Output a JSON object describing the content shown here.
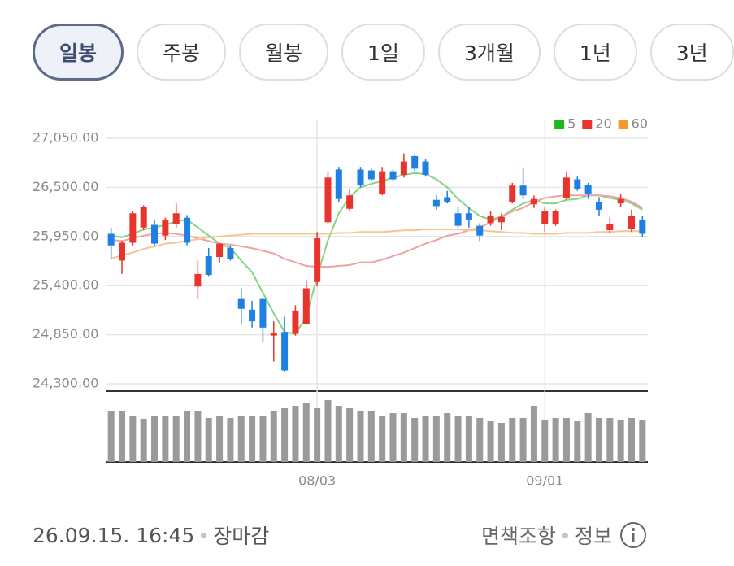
{
  "tabs": [
    {
      "label": "일봉",
      "selected": true
    },
    {
      "label": "주봉",
      "selected": false
    },
    {
      "label": "월봉",
      "selected": false
    },
    {
      "label": "1일",
      "selected": false
    },
    {
      "label": "3개월",
      "selected": false
    },
    {
      "label": "1년",
      "selected": false
    },
    {
      "label": "3년",
      "selected": false
    }
  ],
  "chart_data": {
    "type": "candlestick",
    "categories": [
      null,
      null,
      null,
      null,
      null,
      null,
      null,
      null,
      null,
      null,
      null,
      null,
      null,
      null,
      null,
      null,
      null,
      null,
      null,
      "08/03",
      null,
      null,
      null,
      null,
      null,
      null,
      null,
      null,
      null,
      null,
      null,
      null,
      null,
      null,
      null,
      null,
      null,
      null,
      null,
      null,
      "09/01",
      null,
      null,
      null,
      null,
      null,
      null,
      null,
      null,
      null
    ],
    "open": [
      25980,
      25680,
      25880,
      26050,
      26080,
      25960,
      26090,
      26160,
      25390,
      25730,
      25720,
      25820,
      25250,
      25130,
      25250,
      24840,
      24880,
      24860,
      24970,
      25440,
      26110,
      26700,
      26260,
      26700,
      26690,
      26430,
      26680,
      26640,
      26850,
      26790,
      26360,
      26390,
      26210,
      26210,
      26070,
      26100,
      26110,
      26340,
      26520,
      26310,
      26090,
      26090,
      26380,
      26590,
      26530,
      26340,
      26020,
      26320,
      26030,
      26140
    ],
    "high": [
      26050,
      25900,
      26230,
      26300,
      26140,
      26160,
      26320,
      26190,
      25680,
      25820,
      25880,
      25850,
      25370,
      25230,
      25260,
      25000,
      25050,
      25180,
      25460,
      26000,
      26680,
      26730,
      26480,
      26730,
      26710,
      26730,
      26700,
      26880,
      26870,
      26820,
      26410,
      26460,
      26280,
      26280,
      26100,
      26230,
      26210,
      26550,
      26710,
      26410,
      26280,
      26250,
      26670,
      26620,
      26550,
      26390,
      26160,
      26430,
      26250,
      26180
    ],
    "low": [
      25700,
      25530,
      25850,
      26020,
      25850,
      25910,
      26050,
      25850,
      25250,
      25500,
      25660,
      25680,
      24960,
      24930,
      24770,
      24550,
      24430,
      24840,
      24960,
      25390,
      26090,
      26340,
      26230,
      26500,
      26570,
      26410,
      26570,
      26610,
      26680,
      26620,
      26250,
      26320,
      26050,
      26050,
      25900,
      26070,
      26020,
      26320,
      26370,
      26270,
      26000,
      26070,
      26360,
      26460,
      26370,
      26180,
      25980,
      26280,
      26000,
      25940
    ],
    "close": [
      25850,
      25880,
      26210,
      26280,
      25870,
      26130,
      26210,
      25880,
      25530,
      25520,
      25870,
      25700,
      25140,
      25000,
      24930,
      24870,
      24450,
      25120,
      25370,
      25930,
      26610,
      26370,
      26410,
      26530,
      26590,
      26680,
      26590,
      26790,
      26710,
      26640,
      26290,
      26330,
      26070,
      26140,
      25960,
      26180,
      26170,
      26520,
      26410,
      26370,
      26230,
      26230,
      26610,
      26480,
      26430,
      26250,
      26090,
      26370,
      26180,
      25980
    ],
    "up_color": "#e8342c",
    "down_color": "#1f7fe3",
    "moving_averages": [
      {
        "name": "5",
        "color": "#22b522",
        "line_color": "#86d486",
        "values": [
          25960,
          25940,
          25980,
          26030,
          26050,
          26080,
          26120,
          26140,
          26050,
          25960,
          25870,
          25820,
          25680,
          25550,
          25320,
          25090,
          24880,
          24860,
          25050,
          25500,
          25910,
          26210,
          26390,
          26500,
          26540,
          26570,
          26610,
          26640,
          26660,
          26650,
          26590,
          26500,
          26370,
          26270,
          26180,
          26140,
          26170,
          26250,
          26320,
          26360,
          26320,
          26320,
          26360,
          26370,
          26410,
          26410,
          26380,
          26360,
          26320,
          26250
        ]
      },
      {
        "name": "20",
        "color": "#e8342c",
        "line_color": "#f0a3a3",
        "values": [
          25910,
          25900,
          25930,
          25960,
          25980,
          25990,
          25980,
          25960,
          25930,
          25900,
          25870,
          25860,
          25840,
          25820,
          25790,
          25760,
          25700,
          25660,
          25620,
          25610,
          25610,
          25620,
          25630,
          25660,
          25660,
          25690,
          25730,
          25770,
          25820,
          25870,
          25910,
          25960,
          25980,
          26020,
          26050,
          26110,
          26170,
          26230,
          26270,
          26340,
          26380,
          26400,
          26410,
          26410,
          26410,
          26410,
          26400,
          26380,
          26340,
          26270
        ]
      },
      {
        "name": "60",
        "color": "#f39a2b",
        "line_color": "#f6c690",
        "values": [
          25700,
          25740,
          25770,
          25810,
          25840,
          25870,
          25880,
          25900,
          25920,
          25940,
          25950,
          25960,
          25970,
          25980,
          25980,
          25980,
          25980,
          25980,
          25980,
          25980,
          25980,
          25990,
          25990,
          26000,
          26000,
          26000,
          26010,
          26020,
          26020,
          26030,
          26030,
          26030,
          26030,
          26020,
          26020,
          26010,
          26000,
          25990,
          25990,
          25980,
          25980,
          25980,
          25990,
          25990,
          25990,
          26000,
          26000,
          26010,
          26010,
          26010
        ]
      }
    ],
    "ylim": [
      24300,
      27050
    ],
    "yticks": [
      {
        "value": 24300,
        "label": "24,300.00"
      },
      {
        "value": 24850,
        "label": "24,850.00"
      },
      {
        "value": 25400,
        "label": "25,400.00"
      },
      {
        "value": 25950,
        "label": "25,950.00"
      },
      {
        "value": 26500,
        "label": "26,500.00"
      },
      {
        "value": 27050,
        "label": "27,050.00"
      }
    ],
    "grid": true,
    "volume": {
      "color": "#9a9a9a",
      "ylim": [
        0,
        78
      ],
      "values": [
        63,
        63,
        57,
        53,
        57,
        57,
        57,
        63,
        63,
        54,
        57,
        54,
        57,
        57,
        57,
        63,
        66,
        69,
        73,
        66,
        76,
        69,
        66,
        63,
        63,
        57,
        60,
        60,
        54,
        57,
        57,
        60,
        57,
        57,
        54,
        50,
        48,
        54,
        54,
        69,
        52,
        54,
        54,
        50,
        60,
        54,
        54,
        52,
        54,
        52
      ]
    }
  },
  "footer": {
    "timestamp": "26.09.15. 16:45",
    "status": "장마감",
    "disclaimer": "면책조항",
    "info": "정보"
  }
}
